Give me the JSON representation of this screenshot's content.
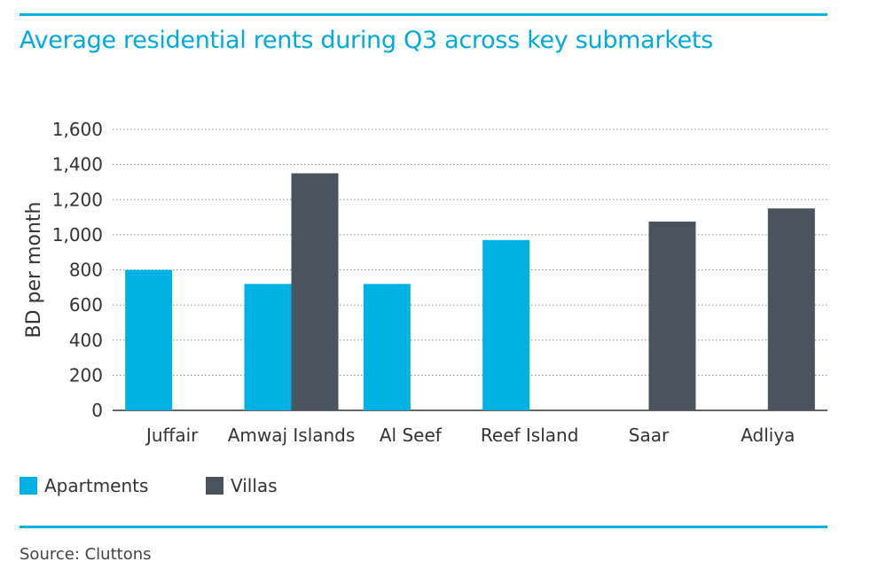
{
  "title": "Average residential rents during Q3 across key submarkets",
  "source": "Source: Cluttons",
  "colors": {
    "accent": "#00b2e3",
    "apartments": "#00b2e3",
    "villas": "#4a545e"
  },
  "legend": {
    "apartments": "Apartments",
    "villas": "Villas"
  },
  "chart_data": {
    "type": "bar",
    "title": "Average residential rents during Q3 across key submarkets",
    "xlabel": "",
    "ylabel": "BD per month",
    "ylim": [
      0,
      1600
    ],
    "yticks": [
      "0",
      "200",
      "400",
      "600",
      "800",
      "1,000",
      "1,200",
      "1,400",
      "1,600"
    ],
    "grid": true,
    "legend_position": "bottom-left",
    "categories": [
      "Juffair",
      "Amwaj Islands",
      "Al Seef",
      "Reef Island",
      "Saar",
      "Adliya"
    ],
    "series": [
      {
        "name": "Apartments",
        "color": "#00b2e3",
        "values": [
          800,
          720,
          720,
          970,
          null,
          null
        ]
      },
      {
        "name": "Villas",
        "color": "#4a545e",
        "values": [
          null,
          1350,
          null,
          null,
          1075,
          1150
        ]
      }
    ]
  }
}
